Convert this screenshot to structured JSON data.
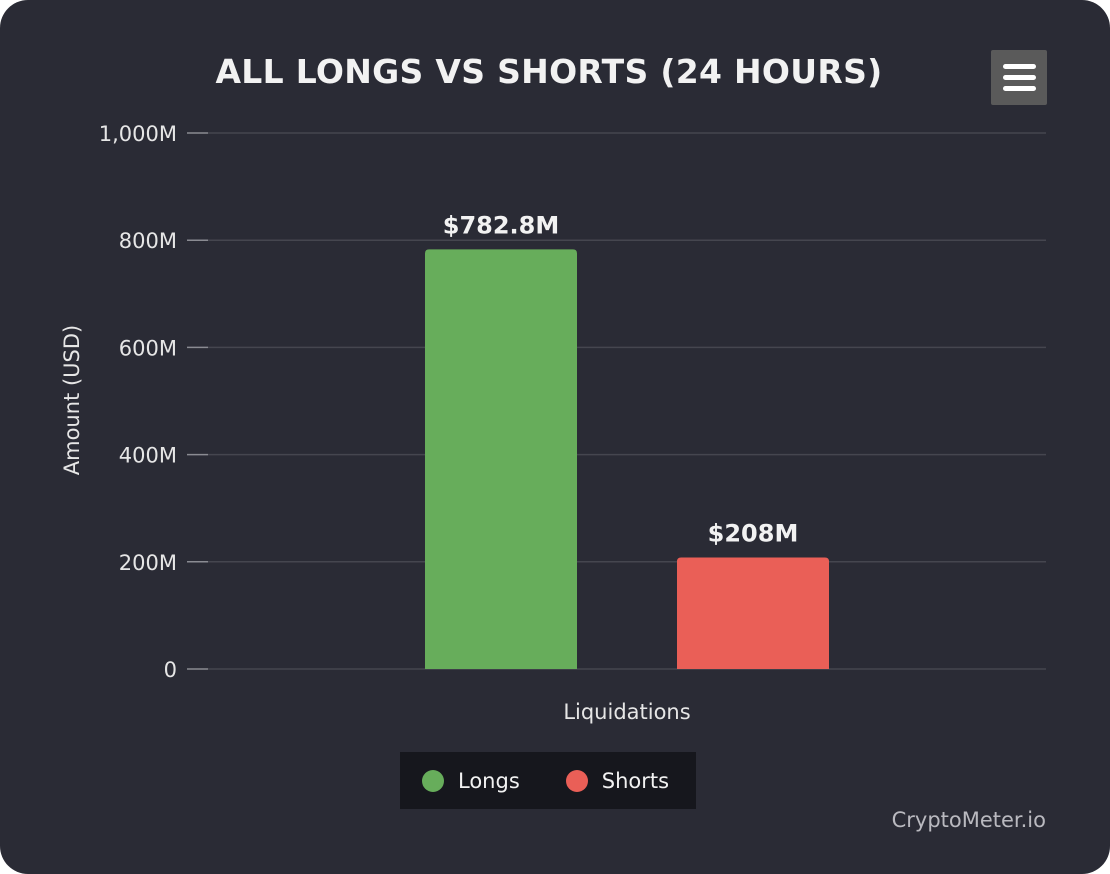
{
  "chart_data": {
    "type": "bar",
    "title": "ALL LONGS VS SHORTS (24 HOURS)",
    "xlabel": "Liquidations",
    "ylabel": "Amount (USD)",
    "ylim": [
      0,
      1000000000
    ],
    "y_ticks": [
      {
        "value": 0,
        "label": "0"
      },
      {
        "value": 200000000,
        "label": "200M"
      },
      {
        "value": 400000000,
        "label": "400M"
      },
      {
        "value": 600000000,
        "label": "600M"
      },
      {
        "value": 800000000,
        "label": "800M"
      },
      {
        "value": 1000000000,
        "label": "1,000M"
      }
    ],
    "grid": true,
    "legend_position": "bottom-center",
    "series": [
      {
        "name": "Longs",
        "value": 782800000,
        "data_label": "$782.8M",
        "color": "#67ad5b"
      },
      {
        "name": "Shorts",
        "value": 208000000,
        "data_label": "$208M",
        "color": "#ea5f57"
      }
    ]
  },
  "credit": "CryptoMeter.io",
  "menu_icon": "hamburger-menu-icon"
}
